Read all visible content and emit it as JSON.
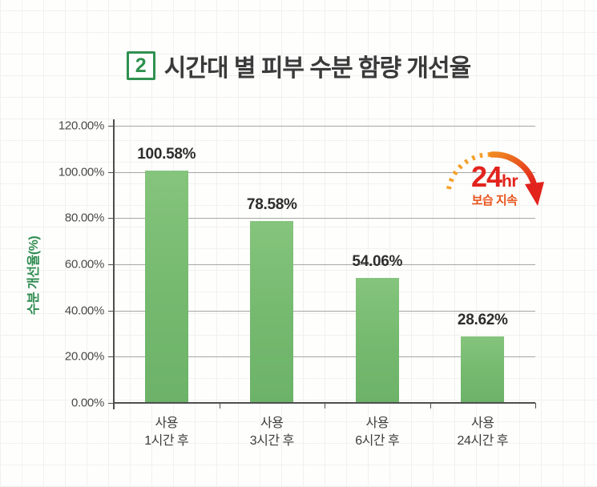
{
  "title": {
    "badge_number": "2",
    "text": "시간대 별 피부 수분 함량 개선율"
  },
  "badge_24hr": {
    "number": "24",
    "unit": "hr",
    "caption": "보습 지속"
  },
  "chart_data": {
    "type": "bar",
    "title": "시간대 별 피부 수분 함량 개선율",
    "categories": [
      "사용\n1시간 후",
      "사용\n3시간 후",
      "사용\n6시간 후",
      "사용\n24시간 후"
    ],
    "values": [
      100.58,
      78.58,
      54.06,
      28.62
    ],
    "value_labels": [
      "100.58%",
      "78.58%",
      "54.06%",
      "28.62%"
    ],
    "xlabel": "",
    "ylabel": "수분 개선율(%)",
    "ylim": [
      0,
      120
    ],
    "ytick_step": 20,
    "ytick_labels": [
      "0.00%",
      "20.00%",
      "40.00%",
      "60.00%",
      "80.00%",
      "100.00%",
      "120.00%"
    ],
    "grid": true,
    "legend": "none",
    "annotation": "24hr 보습 지속",
    "bar_color": "#74b96e"
  },
  "colors": {
    "accent_green": "#2f9150",
    "bar_green": "#74b96e",
    "grid_gray": "#a6a6a6",
    "axis_gray": "#4e4e4e",
    "badge_red": "#e2231d",
    "badge_orange": "#f5a02a",
    "title_text": "#3a3a3a"
  }
}
